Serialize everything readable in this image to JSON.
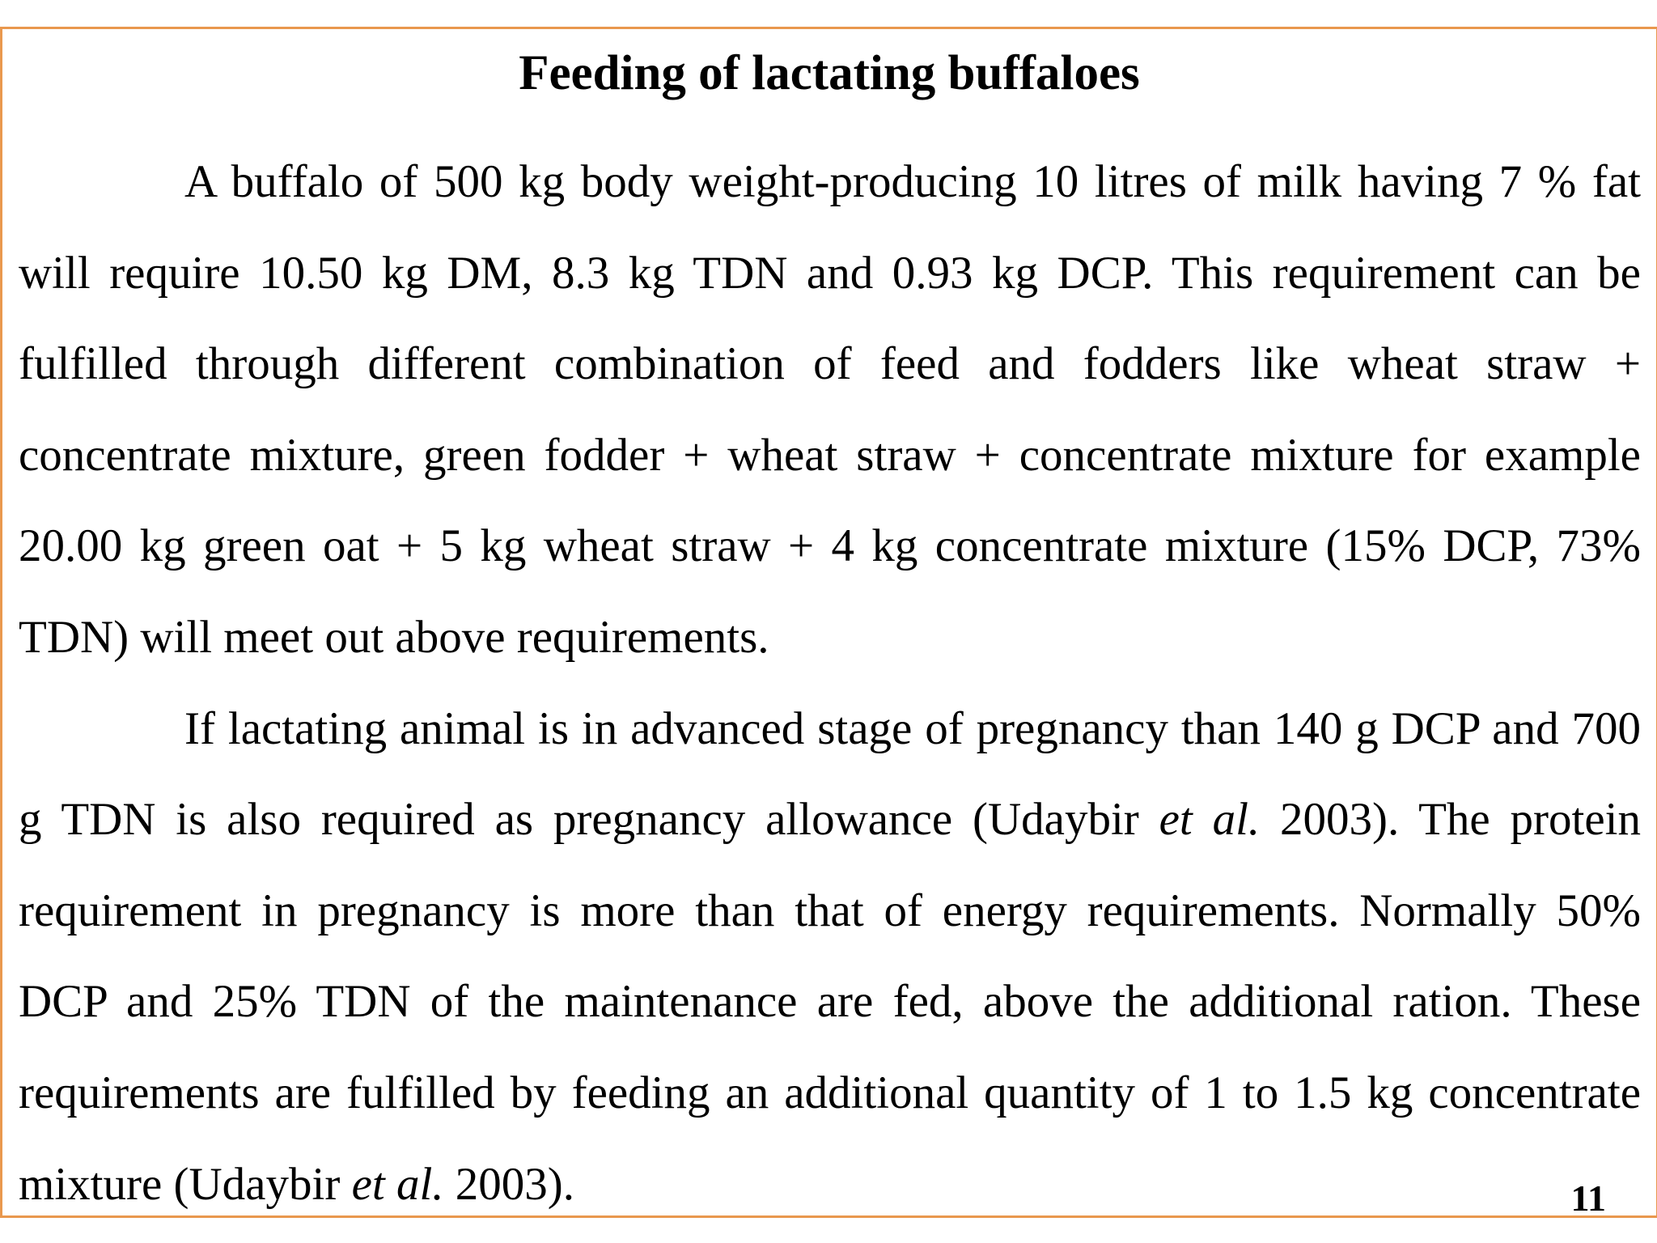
{
  "slide": {
    "title": "Feeding of lactating buffaloes",
    "paragraph1": "A buffalo of 500 kg body weight-producing 10 litres of milk having 7 % fat will require 10.50 kg DM, 8.3 kg TDN and 0.93 kg DCP. This requirement can be fulfilled through different combination of feed and fodders like wheat straw + concentrate mixture, green fodder + wheat straw + concentrate mixture for example 20.00 kg green oat + 5 kg wheat straw + 4 kg concentrate mixture (15% DCP, 73% TDN) will meet out above requirements.",
    "paragraph2": {
      "text1": "If lactating animal is in advanced stage of pregnancy than 140 g DCP and 700 g TDN is also required as pregnancy allowance (Udaybir ",
      "etal1": "et al.",
      "text2": " 2003). The protein requirement in pregnancy is more than that of energy requirements. Normally 50% DCP and 25% TDN of the maintenance are fed, above the additional ration. These requirements are fulfilled by feeding an additional quantity of 1 to 1.5 kg concentrate mixture (Udaybir ",
      "etal2": "et al.",
      "text3": " 2003)."
    },
    "page_number": "11",
    "border_color": "#e9984e"
  }
}
